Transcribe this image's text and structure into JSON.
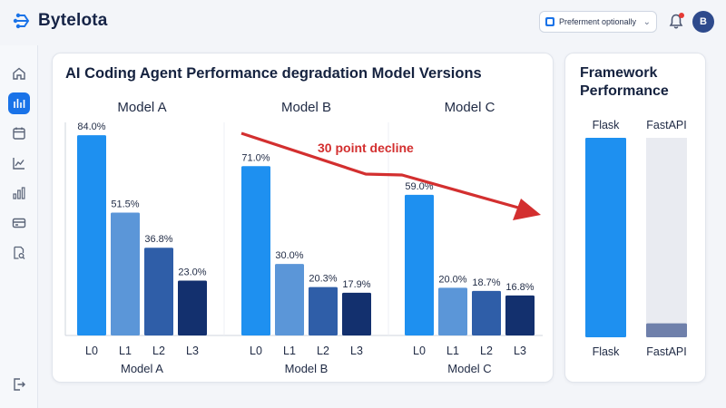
{
  "app": {
    "name": "Bytelota",
    "preference_label": "Preferment optionally",
    "avatar_initial": "B",
    "accent": "#1a73e8"
  },
  "sidebar": {
    "items": [
      {
        "icon": "home-icon",
        "active": false
      },
      {
        "icon": "bar-chart-icon",
        "active": true
      },
      {
        "icon": "calendar-icon",
        "active": false
      },
      {
        "icon": "line-chart-icon",
        "active": false
      },
      {
        "icon": "column-chart-icon",
        "active": false
      },
      {
        "icon": "card-icon",
        "active": false
      },
      {
        "icon": "report-search-icon",
        "active": false
      }
    ],
    "bottom_icon": "logout-icon"
  },
  "main_chart": {
    "title": "AI Coding Agent Performance degradation Model Versions",
    "annotation": "30 point decline",
    "chart_data": {
      "type": "bar",
      "title": "AI Coding Agent Performance degradation Model Versions",
      "categories": [
        "L0",
        "L1",
        "L2",
        "L3"
      ],
      "ylim": [
        0,
        100
      ],
      "grid": false,
      "series": [
        {
          "name": "Model A",
          "values": [
            84.0,
            51.5,
            36.8,
            23.0
          ],
          "labels": [
            "84.0%",
            "51.5%",
            "36.8%",
            "23.0%"
          ]
        },
        {
          "name": "Model B",
          "values": [
            71.0,
            30.0,
            20.3,
            17.9
          ],
          "labels": [
            "71.0%",
            "30.0%",
            "20.3%",
            "17.9%"
          ]
        },
        {
          "name": "Model C",
          "values": [
            59.0,
            20.0,
            18.7,
            16.8
          ],
          "labels": [
            "59.0%",
            "20.0%",
            "18.7%",
            "16.8%"
          ]
        }
      ],
      "colors": [
        "#1e90f0",
        "#5b96d8",
        "#2f5ea8",
        "#13306e"
      ]
    }
  },
  "framework_chart": {
    "title": "Framework Performance",
    "chart_data": {
      "type": "bar",
      "title": "Framework Performance",
      "categories": [
        "Flask",
        "FastAPI"
      ],
      "values": [
        100,
        7
      ],
      "ylim": [
        0,
        100
      ],
      "colors": [
        "#1e90f0",
        "#6f80ab"
      ],
      "track_color": "#e9ebf1"
    }
  }
}
